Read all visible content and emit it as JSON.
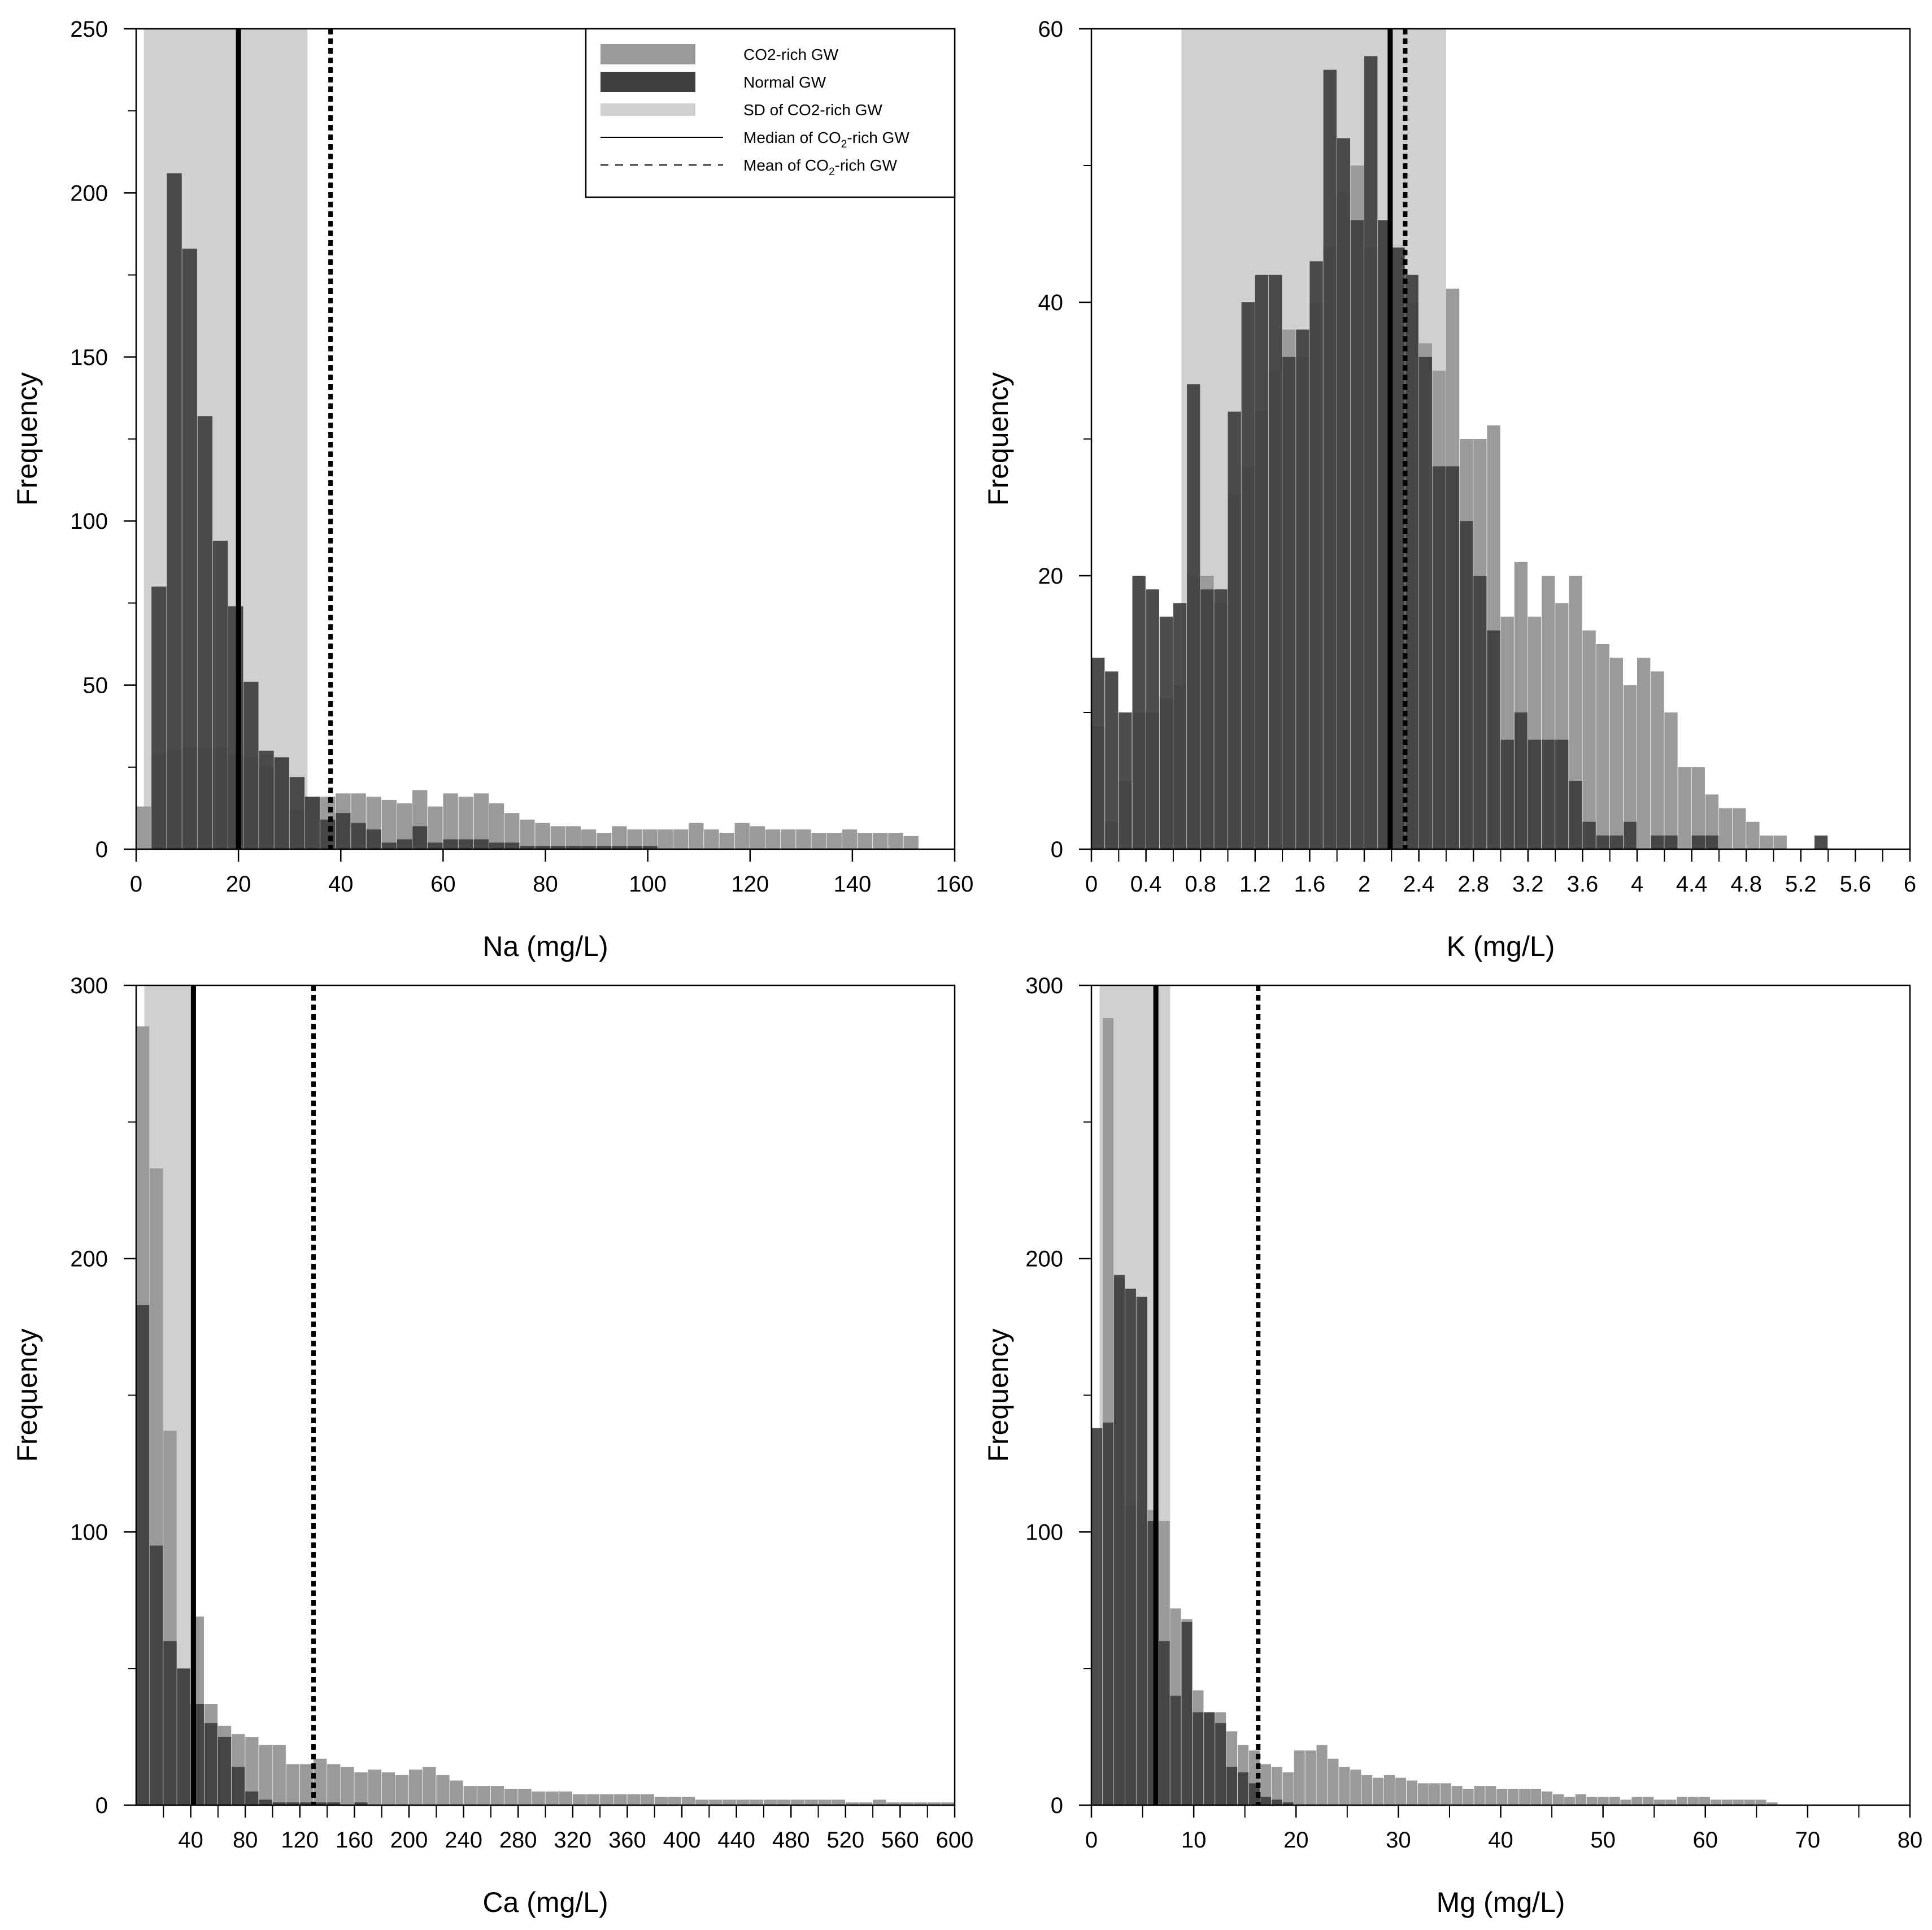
{
  "colors": {
    "co2": "#9a9a9a",
    "normal": "#3f3f3f",
    "sd": "#d0d0d0",
    "line": "#000000",
    "frame": "#000000"
  },
  "legend": {
    "entries": [
      {
        "label": "CO2-rich GW",
        "style": "co2-swatch"
      },
      {
        "label": "Normal GW",
        "style": "normal-swatch"
      },
      {
        "label": "SD of CO2-rich GW",
        "style": "sd-swatch"
      },
      {
        "label": "Median of CO2-rich GW",
        "style": "solid-line",
        "base": "Median of CO",
        "sub": "2",
        "tail": "-rich GW"
      },
      {
        "label": "Mean of CO2-rich GW",
        "style": "dashed-line",
        "base": "Mean of CO",
        "sub": "2",
        "tail": "-rich GW"
      }
    ]
  },
  "chart_data": [
    {
      "id": "na",
      "type": "bar",
      "title": "",
      "xlabel": "Na (mg/L)",
      "ylabel": "Frequency",
      "xlim": [
        0,
        160
      ],
      "ylim": [
        0,
        250
      ],
      "xticks": [
        0,
        20,
        40,
        60,
        80,
        100,
        120,
        140,
        160
      ],
      "xtick_labels": [
        "0",
        "20",
        "40",
        "60",
        "80",
        "100",
        "120",
        "140",
        "160"
      ],
      "xminor": [],
      "yticks": [
        0,
        50,
        100,
        150,
        200,
        250
      ],
      "ytick_labels": [
        "0",
        "50",
        "100",
        "150",
        "200",
        "250"
      ],
      "yminor": [
        25,
        75,
        125,
        175,
        225
      ],
      "sd_band": [
        1.5,
        33.5
      ],
      "median": 20,
      "mean": 38,
      "show_legend": true,
      "series": [
        {
          "name": "CO2-rich GW",
          "bin_start": 0,
          "bin_width": 3,
          "values": [
            13,
            29,
            30,
            31,
            31,
            31,
            29,
            28,
            25,
            28,
            12,
            16,
            16,
            17,
            17,
            16,
            15,
            14,
            18,
            13,
            17,
            16,
            17,
            14,
            11,
            9,
            8,
            7,
            7,
            6,
            5,
            7,
            6,
            6,
            6,
            6,
            8,
            6,
            5,
            8,
            7,
            6,
            6,
            6,
            5,
            5,
            6,
            5,
            5,
            5,
            4,
            0,
            0,
            0
          ]
        },
        {
          "name": "Normal GW",
          "bin_start": 0,
          "bin_width": 3,
          "values": [
            0,
            80,
            206,
            183,
            132,
            94,
            74,
            51,
            30,
            28,
            22,
            16,
            9,
            11,
            8,
            6,
            2,
            3,
            7,
            2,
            3,
            3,
            3,
            2,
            2,
            1,
            1,
            1,
            1,
            1,
            1,
            1,
            1,
            1,
            0,
            0,
            0,
            0,
            0,
            0,
            0,
            0,
            0,
            0,
            0,
            0,
            0,
            0,
            0,
            0,
            0,
            0,
            0,
            0
          ]
        }
      ]
    },
    {
      "id": "k",
      "type": "bar",
      "title": "",
      "xlabel": "K (mg/L)",
      "ylabel": "Frequency",
      "xlim": [
        0,
        6
      ],
      "ylim": [
        0,
        60
      ],
      "xticks": [
        0,
        0.4,
        0.8,
        1.2,
        1.6,
        2,
        2.4,
        2.8,
        3.2,
        3.6,
        4,
        4.4,
        4.8,
        5.2,
        5.6,
        6
      ],
      "xtick_labels": [
        "0",
        "0.4",
        "0.8",
        "1.2",
        "1.6",
        "2",
        "2.4",
        "2.8",
        "3.2",
        "3.6",
        "4",
        "4.4",
        "4.8",
        "5.2",
        "5.6",
        "6"
      ],
      "xminor": [
        0.2,
        0.6,
        1.0,
        1.4,
        1.8,
        2.2,
        2.6,
        3.0,
        3.4,
        3.8,
        4.2,
        4.6,
        5.0,
        5.4,
        5.8
      ],
      "yticks": [
        0,
        20,
        40,
        60
      ],
      "ytick_labels": [
        "0",
        "20",
        "40",
        "60"
      ],
      "yminor": [
        10,
        30,
        50
      ],
      "sd_band": [
        0.66,
        2.6
      ],
      "median": 2.19,
      "mean": 2.3,
      "show_legend": false,
      "series": [
        {
          "name": "CO2-rich GW",
          "bin_start": 0,
          "bin_width": 0.1,
          "values": [
            9,
            2,
            5,
            10,
            10,
            11,
            12,
            20,
            20,
            18,
            26,
            28,
            32,
            35,
            38,
            36,
            40,
            44,
            48,
            50,
            44,
            46,
            44,
            40,
            37,
            35,
            41,
            30,
            30,
            31,
            17,
            21,
            17,
            20,
            18,
            20,
            16,
            15,
            14,
            12,
            14,
            13,
            10,
            6,
            6,
            4,
            3,
            3,
            2,
            1,
            1,
            0,
            0,
            0,
            0,
            0,
            0,
            0,
            0,
            0
          ]
        },
        {
          "name": "Normal GW",
          "bin_start": 0,
          "bin_width": 0.1,
          "values": [
            14,
            13,
            10,
            20,
            19,
            17,
            18,
            34,
            19,
            19,
            32,
            40,
            42,
            42,
            36,
            38,
            43,
            57,
            52,
            46,
            58,
            46,
            44,
            42,
            36,
            28,
            28,
            24,
            20,
            16,
            8,
            10,
            8,
            8,
            8,
            5,
            2,
            1,
            1,
            2,
            0,
            1,
            1,
            0,
            1,
            1,
            0,
            0,
            0,
            0,
            0,
            0,
            0,
            1,
            0,
            0,
            0,
            0,
            0,
            0
          ]
        }
      ]
    },
    {
      "id": "ca",
      "type": "bar",
      "title": "",
      "xlabel": "Ca (mg/L)",
      "ylabel": "Frequency",
      "xlim": [
        0,
        600
      ],
      "ylim": [
        0,
        300
      ],
      "xticks": [
        40,
        80,
        120,
        160,
        200,
        240,
        280,
        320,
        360,
        400,
        440,
        480,
        520,
        560,
        600
      ],
      "xtick_labels": [
        "40",
        "80",
        "120",
        "160",
        "200",
        "240",
        "280",
        "320",
        "360",
        "400",
        "440",
        "480",
        "520",
        "560",
        "600"
      ],
      "xminor": [
        20,
        60,
        100,
        140,
        180,
        220,
        260,
        300,
        340,
        380,
        420,
        460,
        500,
        540,
        580
      ],
      "yticks": [
        0,
        100,
        200,
        300
      ],
      "ytick_labels": [
        "0",
        "100",
        "200",
        "300"
      ],
      "yminor": [
        50,
        150,
        250
      ],
      "sd_band": [
        6,
        41
      ],
      "median": 42,
      "mean": 130,
      "show_legend": false,
      "series": [
        {
          "name": "CO2-rich GW",
          "bin_start": 0,
          "bin_width": 10,
          "values": [
            285,
            233,
            137,
            50,
            69,
            37,
            29,
            26,
            25,
            22,
            22,
            15,
            15,
            17,
            15,
            14,
            12,
            13,
            12,
            11,
            13,
            14,
            11,
            9,
            7,
            7,
            7,
            6,
            6,
            5,
            5,
            5,
            4,
            4,
            4,
            4,
            4,
            4,
            3,
            3,
            3,
            2,
            2,
            2,
            2,
            2,
            2,
            2,
            2,
            2,
            2,
            2,
            1,
            1,
            2,
            1,
            1,
            1,
            1,
            1
          ]
        },
        {
          "name": "Normal GW",
          "bin_start": 0,
          "bin_width": 10,
          "values": [
            183,
            95,
            60,
            50,
            37,
            30,
            25,
            14,
            5,
            2,
            1,
            1,
            1,
            1,
            1,
            0,
            1,
            0,
            0,
            0,
            0,
            0,
            0,
            0,
            0,
            0,
            0,
            0,
            0,
            0,
            0,
            0,
            0,
            0,
            0,
            0,
            0,
            0,
            0,
            0,
            0,
            0,
            0,
            0,
            0,
            0,
            0,
            0,
            0,
            0,
            0,
            0,
            0,
            0,
            0,
            0,
            0,
            0,
            0,
            0
          ]
        }
      ]
    },
    {
      "id": "mg",
      "type": "bar",
      "title": "",
      "xlabel": "Mg (mg/L)",
      "ylabel": "Frequency",
      "xlim": [
        0,
        80
      ],
      "ylim": [
        0,
        300
      ],
      "xticks": [
        0,
        10,
        20,
        30,
        40,
        50,
        60,
        70,
        80
      ],
      "xtick_labels": [
        "0",
        "10",
        "20",
        "30",
        "40",
        "50",
        "60",
        "70",
        "80"
      ],
      "xminor": [
        5,
        15,
        25,
        35,
        45,
        55,
        65,
        75
      ],
      "yticks": [
        0,
        100,
        200,
        300
      ],
      "ytick_labels": [
        "0",
        "100",
        "200",
        "300"
      ],
      "yminor": [
        50,
        150,
        250
      ],
      "sd_band": [
        0.8,
        7.7
      ],
      "median": 6.3,
      "mean": 16.3,
      "show_legend": false,
      "series": [
        {
          "name": "CO2-rich GW",
          "bin_start": 0,
          "bin_width": 1.1,
          "values": [
            0,
            288,
            193,
            110,
            186,
            108,
            104,
            72,
            68,
            42,
            34,
            34,
            27,
            22,
            20,
            15,
            14,
            12,
            20,
            20,
            22,
            17,
            14,
            13,
            11,
            10,
            11,
            10,
            9,
            8,
            8,
            8,
            7,
            6,
            7,
            7,
            6,
            6,
            6,
            6,
            5,
            4,
            3,
            4,
            3,
            3,
            3,
            2,
            3,
            3,
            2,
            2,
            3,
            3,
            3,
            2,
            2,
            2,
            2,
            2,
            1
          ]
        },
        {
          "name": "Normal GW",
          "bin_start": 0,
          "bin_width": 1.1,
          "values": [
            138,
            140,
            194,
            189,
            186,
            104,
            60,
            40,
            67,
            34,
            34,
            30,
            14,
            12,
            8,
            3,
            2,
            1,
            0,
            0,
            0,
            0,
            0,
            0,
            0,
            0,
            0,
            0,
            0,
            0,
            0,
            0,
            0,
            0,
            0,
            0,
            0,
            0,
            0,
            0,
            0,
            0,
            0,
            0,
            0,
            0,
            0,
            0,
            0,
            0,
            0,
            0,
            0,
            0,
            0,
            0,
            0,
            0,
            0,
            0,
            0
          ]
        }
      ]
    }
  ]
}
